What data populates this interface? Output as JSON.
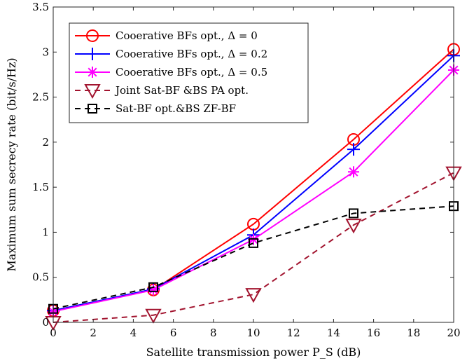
{
  "chart_data": {
    "type": "line",
    "title": "",
    "xlabel": "Satellite transmission power P_S (dB)",
    "ylabel": "Maximum sum secrecy rate (bit/s/Hz)",
    "xlim": [
      0,
      20
    ],
    "ylim": [
      0,
      3.5
    ],
    "xticks": [
      "0",
      "2",
      "4",
      "6",
      "8",
      "10",
      "12",
      "14",
      "16",
      "18",
      "20"
    ],
    "yticks": [
      "0",
      "0.5",
      "1",
      "1.5",
      "2",
      "2.5",
      "3",
      "3.5"
    ],
    "grid": false,
    "legend_position": "top-left",
    "x": [
      0,
      5,
      10,
      15,
      20
    ],
    "series": [
      {
        "name": "Cooerative BFs opt., Δ = 0",
        "values": [
          0.13,
          0.36,
          1.09,
          2.03,
          3.03
        ],
        "color": "#ff0000",
        "marker": "circle",
        "dash": "solid"
      },
      {
        "name": "Cooerative BFs opt., Δ = 0.2",
        "values": [
          0.13,
          0.37,
          0.97,
          1.92,
          2.96
        ],
        "color": "#0000ff",
        "marker": "plus",
        "dash": "solid"
      },
      {
        "name": "Cooerative BFs opt., Δ = 0.5",
        "values": [
          0.12,
          0.36,
          0.92,
          1.67,
          2.8
        ],
        "color": "#ff00ff",
        "marker": "asterisk",
        "dash": "solid"
      },
      {
        "name": "Joint Sat-BF &BS PA opt.",
        "values": [
          0.0,
          0.08,
          0.31,
          1.08,
          1.66
        ],
        "color": "#a2142f",
        "marker": "triangle-down",
        "dash": "dashed"
      },
      {
        "name": "Sat-BF opt.&BS ZF-BF",
        "values": [
          0.15,
          0.39,
          0.88,
          1.21,
          1.29
        ],
        "color": "#000000",
        "marker": "square",
        "dash": "dashed"
      }
    ]
  }
}
